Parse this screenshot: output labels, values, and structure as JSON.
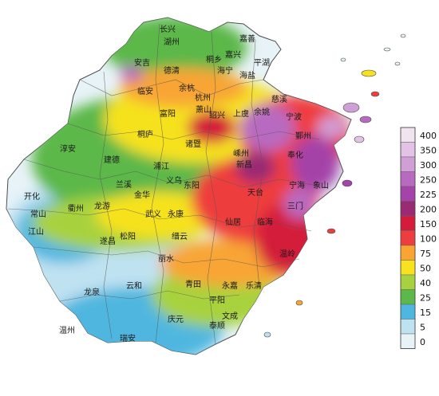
{
  "colors": {
    "sea": "#ffffff",
    "boundary": "#4a4a4a"
  },
  "legend": {
    "bins": [
      {
        "label": "400",
        "color": "#efe4f0"
      },
      {
        "label": "350",
        "color": "#e2c3e6"
      },
      {
        "label": "300",
        "color": "#cf9fd6"
      },
      {
        "label": "250",
        "color": "#b86ac0"
      },
      {
        "label": "225",
        "color": "#a443a8"
      },
      {
        "label": "200",
        "color": "#9a2a73"
      },
      {
        "label": "150",
        "color": "#d41b3b"
      },
      {
        "label": "100",
        "color": "#ee3d3d"
      },
      {
        "label": "75",
        "color": "#f8a534"
      },
      {
        "label": "50",
        "color": "#f6e21e"
      },
      {
        "label": "40",
        "color": "#a8d23d"
      },
      {
        "label": "25",
        "color": "#5cb84a"
      },
      {
        "label": "15",
        "color": "#4fb7df"
      },
      {
        "label": "5",
        "color": "#bfe2f1"
      },
      {
        "label": "0",
        "color": "#e8f3f8"
      }
    ]
  },
  "cities": [
    {
      "name": "长兴"
    },
    {
      "name": "湖州"
    },
    {
      "name": "嘉善"
    },
    {
      "name": "嘉兴"
    },
    {
      "name": "平湖"
    },
    {
      "name": "安吉"
    },
    {
      "name": "德清"
    },
    {
      "name": "桐乡"
    },
    {
      "name": "海宁"
    },
    {
      "name": "海盐"
    },
    {
      "name": "临安"
    },
    {
      "name": "余杭"
    },
    {
      "name": "杭州"
    },
    {
      "name": "萧山"
    },
    {
      "name": "绍兴"
    },
    {
      "name": "上虞"
    },
    {
      "name": "余姚"
    },
    {
      "name": "慈溪"
    },
    {
      "name": "宁波"
    },
    {
      "name": "鄞州"
    },
    {
      "name": "富阳"
    },
    {
      "name": "桐庐"
    },
    {
      "name": "诸暨"
    },
    {
      "name": "嵊州"
    },
    {
      "name": "新昌"
    },
    {
      "name": "奉化"
    },
    {
      "name": "宁海"
    },
    {
      "name": "象山"
    },
    {
      "name": "淳安"
    },
    {
      "name": "建德"
    },
    {
      "name": "浦江"
    },
    {
      "name": "兰溪"
    },
    {
      "name": "义乌"
    },
    {
      "name": "东阳"
    },
    {
      "name": "开化"
    },
    {
      "name": "衢州"
    },
    {
      "name": "龙游"
    },
    {
      "name": "金华"
    },
    {
      "name": "武义"
    },
    {
      "name": "永康"
    },
    {
      "name": "天台"
    },
    {
      "name": "三门"
    },
    {
      "name": "常山"
    },
    {
      "name": "江山"
    },
    {
      "name": "遂昌"
    },
    {
      "name": "缙云"
    },
    {
      "name": "仙居"
    },
    {
      "name": "临海"
    },
    {
      "name": "松阳"
    },
    {
      "name": "丽水"
    },
    {
      "name": "温岭"
    },
    {
      "name": "龙泉"
    },
    {
      "name": "云和"
    },
    {
      "name": "青田"
    },
    {
      "name": "永嘉"
    },
    {
      "name": "乐清"
    },
    {
      "name": "温州"
    },
    {
      "name": "庆元"
    },
    {
      "name": "文成"
    },
    {
      "name": "瑞安"
    },
    {
      "name": "泰顺"
    },
    {
      "name": "平阳"
    }
  ]
}
